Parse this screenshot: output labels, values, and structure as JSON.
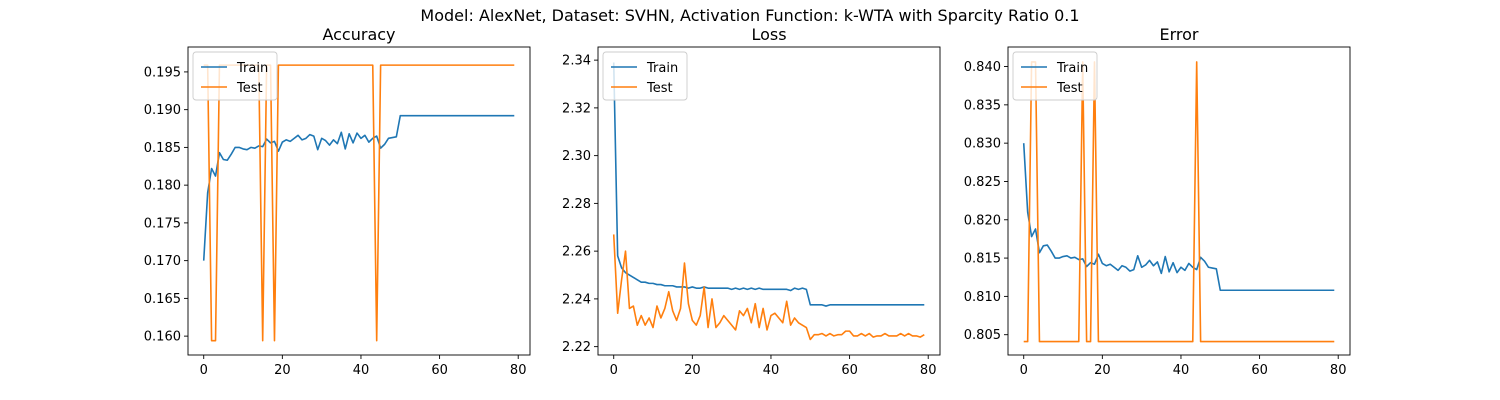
{
  "suptitle": "Model: AlexNet, Dataset: SVHN, Activation Function: k-WTA with Sparcity Ratio 0.1",
  "colors": {
    "train": "#1f77b4",
    "test": "#ff7f0e"
  },
  "chart_data": [
    {
      "type": "line",
      "title": "Accuracy",
      "xlim": [
        -4,
        83
      ],
      "ylim": [
        0.1575,
        0.1983
      ],
      "xticks": [
        0,
        20,
        40,
        60,
        80
      ],
      "yticks": [
        0.16,
        0.165,
        0.17,
        0.175,
        0.18,
        0.185,
        0.19,
        0.195
      ],
      "ytick_labels": [
        "0.160",
        "0.165",
        "0.170",
        "0.175",
        "0.180",
        "0.185",
        "0.190",
        "0.195"
      ],
      "legend": "upper-left",
      "series": [
        {
          "name": "Train",
          "x": [
            0,
            1,
            2,
            3,
            4,
            5,
            6,
            7,
            8,
            9,
            10,
            11,
            12,
            13,
            14,
            15,
            16,
            17,
            18,
            19,
            20,
            21,
            22,
            23,
            24,
            25,
            26,
            27,
            28,
            29,
            30,
            31,
            32,
            33,
            34,
            35,
            36,
            37,
            38,
            39,
            40,
            41,
            42,
            43,
            44,
            45,
            46,
            47,
            48,
            49,
            50,
            51,
            52,
            53,
            54,
            55,
            56,
            57,
            58,
            59,
            60,
            61,
            62,
            63,
            64,
            65,
            66,
            67,
            68,
            69,
            70,
            71,
            72,
            73,
            74,
            75,
            76,
            77,
            78,
            79
          ],
          "y": [
            0.17,
            0.179,
            0.1822,
            0.1812,
            0.1843,
            0.1834,
            0.1833,
            0.1841,
            0.185,
            0.185,
            0.1848,
            0.1847,
            0.185,
            0.1849,
            0.1852,
            0.1851,
            0.1861,
            0.1856,
            0.1858,
            0.1845,
            0.1857,
            0.186,
            0.1858,
            0.1862,
            0.1866,
            0.186,
            0.1862,
            0.1867,
            0.1865,
            0.1847,
            0.1862,
            0.1859,
            0.1853,
            0.186,
            0.1855,
            0.187,
            0.1848,
            0.1868,
            0.1856,
            0.1869,
            0.1862,
            0.1866,
            0.1857,
            0.1862,
            0.1865,
            0.1849,
            0.1854,
            0.1862,
            0.1863,
            0.1864,
            0.1892,
            0.1892,
            0.1892,
            0.1892,
            0.1892,
            0.1892,
            0.1892,
            0.1892,
            0.1892,
            0.1892,
            0.1892,
            0.1892,
            0.1892,
            0.1892,
            0.1892,
            0.1892,
            0.1892,
            0.1892,
            0.1892,
            0.1892,
            0.1892,
            0.1892,
            0.1892,
            0.1892,
            0.1892,
            0.1892,
            0.1892,
            0.1892,
            0.1892,
            0.1892
          ]
        },
        {
          "name": "Test",
          "x": [
            0,
            1,
            2,
            3,
            4,
            5,
            6,
            7,
            8,
            9,
            10,
            11,
            12,
            13,
            14,
            15,
            16,
            17,
            18,
            19,
            20,
            21,
            22,
            23,
            24,
            25,
            26,
            27,
            28,
            29,
            30,
            31,
            32,
            33,
            34,
            35,
            36,
            37,
            38,
            39,
            40,
            41,
            42,
            43,
            44,
            45,
            46,
            47,
            48,
            49,
            50,
            51,
            52,
            53,
            54,
            55,
            56,
            57,
            58,
            59,
            60,
            61,
            62,
            63,
            64,
            65,
            66,
            67,
            68,
            69,
            70,
            71,
            72,
            73,
            74,
            75,
            76,
            77,
            78,
            79
          ],
          "y": [
            0.1959,
            0.1959,
            0.1594,
            0.1594,
            0.1959,
            0.1959,
            0.1959,
            0.1959,
            0.1959,
            0.1959,
            0.1959,
            0.1959,
            0.1959,
            0.1959,
            0.1959,
            0.1594,
            0.1959,
            0.1959,
            0.1594,
            0.1959,
            0.1959,
            0.1959,
            0.1959,
            0.1959,
            0.1959,
            0.1959,
            0.1959,
            0.1959,
            0.1959,
            0.1959,
            0.1959,
            0.1959,
            0.1959,
            0.1959,
            0.1959,
            0.1959,
            0.1959,
            0.1959,
            0.1959,
            0.1959,
            0.1959,
            0.1959,
            0.1959,
            0.1959,
            0.1594,
            0.1959,
            0.1959,
            0.1959,
            0.1959,
            0.1959,
            0.1959,
            0.1959,
            0.1959,
            0.1959,
            0.1959,
            0.1959,
            0.1959,
            0.1959,
            0.1959,
            0.1959,
            0.1959,
            0.1959,
            0.1959,
            0.1959,
            0.1959,
            0.1959,
            0.1959,
            0.1959,
            0.1959,
            0.1959,
            0.1959,
            0.1959,
            0.1959,
            0.1959,
            0.1959,
            0.1959,
            0.1959,
            0.1959,
            0.1959,
            0.1959
          ]
        }
      ]
    },
    {
      "type": "line",
      "title": "Loss",
      "xlim": [
        -4,
        83
      ],
      "ylim": [
        2.2165,
        2.3455
      ],
      "xticks": [
        0,
        20,
        40,
        60,
        80
      ],
      "yticks": [
        2.22,
        2.24,
        2.26,
        2.28,
        2.3,
        2.32,
        2.34
      ],
      "ytick_labels": [
        "2.22",
        "2.24",
        "2.26",
        "2.28",
        "2.30",
        "2.32",
        "2.34"
      ],
      "legend": "upper-left",
      "series": [
        {
          "name": "Train",
          "x": [
            0,
            1,
            2,
            3,
            4,
            5,
            6,
            7,
            8,
            9,
            10,
            11,
            12,
            13,
            14,
            15,
            16,
            17,
            18,
            19,
            20,
            21,
            22,
            23,
            24,
            25,
            26,
            27,
            28,
            29,
            30,
            31,
            32,
            33,
            34,
            35,
            36,
            37,
            38,
            39,
            40,
            41,
            42,
            43,
            44,
            45,
            46,
            47,
            48,
            49,
            50,
            51,
            52,
            53,
            54,
            55,
            56,
            57,
            58,
            59,
            60,
            61,
            62,
            63,
            64,
            65,
            66,
            67,
            68,
            69,
            70,
            71,
            72,
            73,
            74,
            75,
            76,
            77,
            78,
            79
          ],
          "y": [
            2.339,
            2.258,
            2.253,
            2.251,
            2.25,
            2.249,
            2.248,
            2.247,
            2.247,
            2.2465,
            2.2465,
            2.246,
            2.246,
            2.2455,
            2.2455,
            2.2455,
            2.245,
            2.245,
            2.245,
            2.2445,
            2.245,
            2.2445,
            2.2445,
            2.245,
            2.2445,
            2.2445,
            2.2445,
            2.2445,
            2.2445,
            2.2445,
            2.244,
            2.2445,
            2.244,
            2.2445,
            2.244,
            2.2445,
            2.244,
            2.2445,
            2.244,
            2.244,
            2.244,
            2.244,
            2.244,
            2.244,
            2.244,
            2.2435,
            2.2445,
            2.244,
            2.2445,
            2.244,
            2.2375,
            2.2375,
            2.2375,
            2.2375,
            2.237,
            2.2375,
            2.2375,
            2.2375,
            2.2375,
            2.2375,
            2.2375,
            2.2375,
            2.2375,
            2.2375,
            2.2375,
            2.2375,
            2.2375,
            2.2375,
            2.2375,
            2.2375,
            2.2375,
            2.2375,
            2.2375,
            2.2375,
            2.2375,
            2.2375,
            2.2375,
            2.2375,
            2.2375,
            2.2375
          ]
        },
        {
          "name": "Test",
          "x": [
            0,
            1,
            2,
            3,
            4,
            5,
            6,
            7,
            8,
            9,
            10,
            11,
            12,
            13,
            14,
            15,
            16,
            17,
            18,
            19,
            20,
            21,
            22,
            23,
            24,
            25,
            26,
            27,
            28,
            29,
            30,
            31,
            32,
            33,
            34,
            35,
            36,
            37,
            38,
            39,
            40,
            41,
            42,
            43,
            44,
            45,
            46,
            47,
            48,
            49,
            50,
            51,
            52,
            53,
            54,
            55,
            56,
            57,
            58,
            59,
            60,
            61,
            62,
            63,
            64,
            65,
            66,
            67,
            68,
            69,
            70,
            71,
            72,
            73,
            74,
            75,
            76,
            77,
            78,
            79
          ],
          "y": [
            2.267,
            2.234,
            2.248,
            2.26,
            2.236,
            2.237,
            2.229,
            2.233,
            2.229,
            2.232,
            2.228,
            2.237,
            2.232,
            2.236,
            2.243,
            2.235,
            2.231,
            2.236,
            2.255,
            2.238,
            2.231,
            2.229,
            2.233,
            2.245,
            2.228,
            2.24,
            2.228,
            2.23,
            2.233,
            2.231,
            2.229,
            2.227,
            2.235,
            2.233,
            2.236,
            2.23,
            2.238,
            2.228,
            2.236,
            2.227,
            2.233,
            2.234,
            2.232,
            2.23,
            2.239,
            2.229,
            2.232,
            2.23,
            2.229,
            2.228,
            2.223,
            2.225,
            2.225,
            2.2255,
            2.2245,
            2.2255,
            2.2245,
            2.225,
            2.225,
            2.2265,
            2.2265,
            2.2245,
            2.2245,
            2.2255,
            2.2245,
            2.2255,
            2.224,
            2.2245,
            2.2245,
            2.2255,
            2.2245,
            2.2245,
            2.2245,
            2.2255,
            2.2245,
            2.2255,
            2.2245,
            2.2245,
            2.224,
            2.225
          ]
        }
      ]
    },
    {
      "type": "line",
      "title": "Error",
      "xlim": [
        -4,
        83
      ],
      "ylim": [
        0.80235,
        0.84255
      ],
      "xticks": [
        0,
        20,
        40,
        60,
        80
      ],
      "yticks": [
        0.805,
        0.81,
        0.815,
        0.82,
        0.825,
        0.83,
        0.835,
        0.84
      ],
      "ytick_labels": [
        "0.805",
        "0.810",
        "0.815",
        "0.820",
        "0.825",
        "0.830",
        "0.835",
        "0.840"
      ],
      "legend": "upper-left",
      "series": [
        {
          "name": "Train",
          "x": [
            0,
            1,
            2,
            3,
            4,
            5,
            6,
            7,
            8,
            9,
            10,
            11,
            12,
            13,
            14,
            15,
            16,
            17,
            18,
            19,
            20,
            21,
            22,
            23,
            24,
            25,
            26,
            27,
            28,
            29,
            30,
            31,
            32,
            33,
            34,
            35,
            36,
            37,
            38,
            39,
            40,
            41,
            42,
            43,
            44,
            45,
            46,
            47,
            48,
            49,
            50,
            51,
            52,
            53,
            54,
            55,
            56,
            57,
            58,
            59,
            60,
            61,
            62,
            63,
            64,
            65,
            66,
            67,
            68,
            69,
            70,
            71,
            72,
            73,
            74,
            75,
            76,
            77,
            78,
            79
          ],
          "y": [
            0.83,
            0.821,
            0.8178,
            0.8188,
            0.8157,
            0.8166,
            0.8167,
            0.8159,
            0.815,
            0.815,
            0.8152,
            0.8153,
            0.815,
            0.8151,
            0.8148,
            0.8149,
            0.8139,
            0.8144,
            0.8142,
            0.8155,
            0.8143,
            0.814,
            0.8142,
            0.8138,
            0.8134,
            0.814,
            0.8138,
            0.8133,
            0.8135,
            0.8153,
            0.8138,
            0.8141,
            0.8147,
            0.814,
            0.8145,
            0.813,
            0.8152,
            0.8132,
            0.8144,
            0.8131,
            0.8138,
            0.8134,
            0.8143,
            0.8138,
            0.8135,
            0.8151,
            0.8146,
            0.8138,
            0.8137,
            0.8136,
            0.8108,
            0.8108,
            0.8108,
            0.8108,
            0.8108,
            0.8108,
            0.8108,
            0.8108,
            0.8108,
            0.8108,
            0.8108,
            0.8108,
            0.8108,
            0.8108,
            0.8108,
            0.8108,
            0.8108,
            0.8108,
            0.8108,
            0.8108,
            0.8108,
            0.8108,
            0.8108,
            0.8108,
            0.8108,
            0.8108,
            0.8108,
            0.8108,
            0.8108,
            0.8108
          ]
        },
        {
          "name": "Test",
          "x": [
            0,
            1,
            2,
            3,
            4,
            5,
            6,
            7,
            8,
            9,
            10,
            11,
            12,
            13,
            14,
            15,
            16,
            17,
            18,
            19,
            20,
            21,
            22,
            23,
            24,
            25,
            26,
            27,
            28,
            29,
            30,
            31,
            32,
            33,
            34,
            35,
            36,
            37,
            38,
            39,
            40,
            41,
            42,
            43,
            44,
            45,
            46,
            47,
            48,
            49,
            50,
            51,
            52,
            53,
            54,
            55,
            56,
            57,
            58,
            59,
            60,
            61,
            62,
            63,
            64,
            65,
            66,
            67,
            68,
            69,
            70,
            71,
            72,
            73,
            74,
            75,
            76,
            77,
            78,
            79
          ],
          "y": [
            0.8041,
            0.8041,
            0.8406,
            0.8406,
            0.8041,
            0.8041,
            0.8041,
            0.8041,
            0.8041,
            0.8041,
            0.8041,
            0.8041,
            0.8041,
            0.8041,
            0.8041,
            0.8406,
            0.8041,
            0.8041,
            0.8406,
            0.8041,
            0.8041,
            0.8041,
            0.8041,
            0.8041,
            0.8041,
            0.8041,
            0.8041,
            0.8041,
            0.8041,
            0.8041,
            0.8041,
            0.8041,
            0.8041,
            0.8041,
            0.8041,
            0.8041,
            0.8041,
            0.8041,
            0.8041,
            0.8041,
            0.8041,
            0.8041,
            0.8041,
            0.8041,
            0.8406,
            0.8041,
            0.8041,
            0.8041,
            0.8041,
            0.8041,
            0.8041,
            0.8041,
            0.8041,
            0.8041,
            0.8041,
            0.8041,
            0.8041,
            0.8041,
            0.8041,
            0.8041,
            0.8041,
            0.8041,
            0.8041,
            0.8041,
            0.8041,
            0.8041,
            0.8041,
            0.8041,
            0.8041,
            0.8041,
            0.8041,
            0.8041,
            0.8041,
            0.8041,
            0.8041,
            0.8041,
            0.8041,
            0.8041,
            0.8041,
            0.8041
          ]
        }
      ]
    }
  ]
}
